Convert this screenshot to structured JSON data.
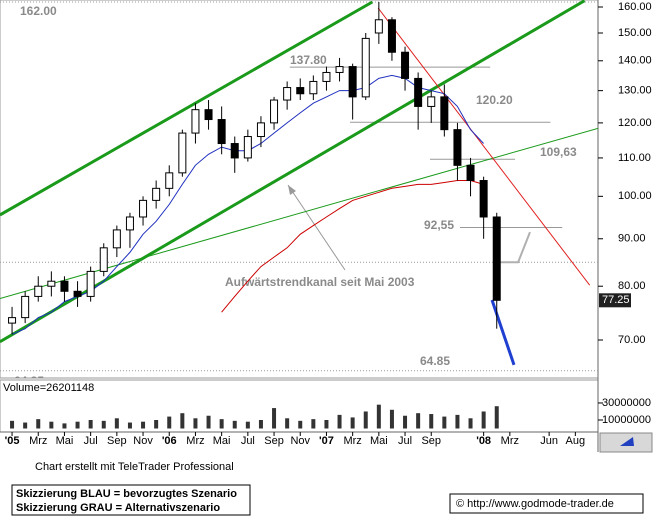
{
  "chart_data": {
    "type": "candlestick",
    "log_scale": true,
    "xlim": [
      -0.92,
      44.73
    ],
    "ylim": [
      63.7,
      162.8
    ],
    "yticks": [
      {
        "value": 160,
        "label": "160.00"
      },
      {
        "value": 150,
        "label": "150.00"
      },
      {
        "value": 140,
        "label": "140.00"
      },
      {
        "value": 130,
        "label": "130.00"
      },
      {
        "value": 120,
        "label": "120.00"
      },
      {
        "value": 110,
        "label": "110.00"
      },
      {
        "value": 100,
        "label": "100.00"
      },
      {
        "value": 90,
        "label": "90.00"
      },
      {
        "value": 80,
        "label": "80.00"
      },
      {
        "value": 70,
        "label": "70.00"
      }
    ],
    "xticks": [
      {
        "value": 0,
        "label": "'05"
      },
      {
        "value": 2,
        "label": "Mrz"
      },
      {
        "value": 4,
        "label": "Mai"
      },
      {
        "value": 6,
        "label": "Jul"
      },
      {
        "value": 8,
        "label": "Sep"
      },
      {
        "value": 10,
        "label": "Nov"
      },
      {
        "value": 12,
        "label": "'06"
      },
      {
        "value": 14,
        "label": "Mrz"
      },
      {
        "value": 16,
        "label": "Mai"
      },
      {
        "value": 18,
        "label": "Jul"
      },
      {
        "value": 20,
        "label": "Sep"
      },
      {
        "value": 22,
        "label": "Nov"
      },
      {
        "value": 24,
        "label": "'07"
      },
      {
        "value": 26,
        "label": "Mrz"
      },
      {
        "value": 28,
        "label": "Mai"
      },
      {
        "value": 30,
        "label": "Jul"
      },
      {
        "value": 32,
        "label": "Sep"
      },
      {
        "value": 36,
        "label": "'08"
      },
      {
        "value": 38,
        "label": "Mrz"
      },
      {
        "value": 41,
        "label": "Jun"
      },
      {
        "value": 43,
        "label": "Aug"
      }
    ],
    "x": [
      0,
      1,
      2,
      3,
      4,
      5,
      6,
      7,
      8,
      9,
      10,
      11,
      12,
      13,
      14,
      15,
      16,
      17,
      18,
      19,
      20,
      21,
      22,
      23,
      24,
      25,
      26,
      27,
      28,
      29,
      30,
      31,
      32,
      33,
      34,
      35,
      36,
      37
    ],
    "open": [
      73,
      74,
      78,
      80,
      81,
      79,
      78,
      83,
      88,
      92,
      95,
      99,
      102,
      106,
      117,
      124,
      121,
      114,
      110,
      116,
      120,
      127,
      131,
      129,
      133,
      136,
      138,
      128,
      150,
      155,
      143,
      134,
      125,
      128,
      118,
      108,
      104,
      95
    ],
    "high": [
      76,
      79,
      82,
      83,
      82,
      81,
      84,
      89,
      93,
      96,
      100,
      104,
      108,
      118,
      126,
      127,
      125,
      116,
      118,
      122,
      128,
      133,
      134,
      135,
      138,
      141,
      139,
      150,
      162,
      156,
      145,
      136,
      130,
      132,
      120,
      110,
      105,
      96
    ],
    "low": [
      71,
      73,
      77,
      78,
      77,
      76,
      77,
      82,
      86,
      88,
      93,
      97,
      100,
      105,
      114,
      118,
      111,
      106,
      109,
      113,
      118,
      124,
      127,
      127,
      130,
      133,
      121,
      127,
      146,
      140,
      130,
      118,
      120,
      116,
      104,
      100,
      90,
      72
    ],
    "close": [
      74,
      78,
      80,
      81,
      79,
      78,
      83,
      88,
      92,
      95,
      99,
      102,
      106,
      117,
      124,
      121,
      114,
      110,
      116,
      120,
      127,
      131,
      129,
      133,
      136,
      138,
      128,
      148,
      155,
      143,
      134,
      125,
      128,
      118,
      108,
      104,
      95,
      77.25
    ],
    "colors": {
      "up": "#ffffff",
      "down": "#000000",
      "outline": "#000000"
    },
    "series": [
      {
        "color": "#1f2fbf",
        "values": [
          71,
          72,
          74,
          75,
          77,
          78,
          79,
          81,
          84,
          87,
          91,
          94,
          98,
          103,
          108,
          111,
          113,
          112,
          112,
          114,
          117,
          120,
          123,
          126,
          128,
          130,
          130,
          131,
          134,
          135,
          134,
          131,
          130,
          129,
          125,
          118,
          114,
          null
        ]
      },
      {
        "color": "#cc0000",
        "values": [
          null,
          null,
          null,
          null,
          null,
          null,
          null,
          null,
          null,
          null,
          null,
          null,
          null,
          null,
          null,
          null,
          75,
          78,
          81,
          84,
          86,
          88,
          91,
          93,
          95,
          97,
          99,
          100,
          101,
          102,
          102.5,
          103,
          103,
          103.5,
          104,
          104,
          103,
          null
        ]
      }
    ],
    "lines": [
      {
        "color": "#1a9a1a",
        "width": 3,
        "x": [
          -0.92,
          27.5
        ],
        "values": [
          95.5,
          162
        ]
      },
      {
        "color": "#1a9a1a",
        "width": 3,
        "x": [
          -0.92,
          43.7
        ],
        "values": [
          69.7,
          162.5
        ]
      },
      {
        "color": "#1a9a1a",
        "width": 1,
        "x": [
          -0.92,
          44.73
        ],
        "values": [
          77.6,
          118.4
        ]
      },
      {
        "color": "#e02020",
        "width": 1,
        "x": [
          27.94,
          44.1
        ],
        "values": [
          159.6,
          80.2
        ]
      },
      {
        "color": "#b0b0b0",
        "width": 2,
        "x": [
          37.25,
          38.63,
          39.54
        ],
        "values": [
          84.9,
          84.9,
          91.5
        ]
      },
      {
        "color": "#1f3fd0",
        "width": 3,
        "x": [
          36.64,
          38.32
        ],
        "values": [
          77.3,
          65.8
        ]
      }
    ],
    "levels": [
      {
        "value": 162,
        "label": "162.00",
        "x": [
          -0.92,
          44.73
        ]
      },
      {
        "value": 137.8,
        "label": "137.80",
        "x": [
          21.2,
          36.5
        ]
      },
      {
        "value": 120.2,
        "label": "120.20",
        "x": [
          25.8,
          41.1
        ]
      },
      {
        "value": 109.63,
        "label": "109,63",
        "x": [
          31.9,
          38.4
        ]
      },
      {
        "value": 92.55,
        "label": "92,55",
        "x": [
          34.2,
          42
        ]
      },
      {
        "value": 84.9,
        "x": [
          -0.92,
          44.73
        ]
      },
      {
        "value": 64.85,
        "label": "64.85",
        "x": [
          -0.92,
          44.73
        ]
      }
    ],
    "annotation": "Aufwärtstrendkanal seit Mai 2003",
    "volume": {
      "label": "Volume=26201148",
      "ylim": [
        0,
        57000000
      ],
      "yticks": [
        30000000,
        10000000
      ],
      "values": [
        9000000,
        7000000,
        11000000,
        8000000,
        6000000,
        8000000,
        10000000,
        9000000,
        12000000,
        7000000,
        8000000,
        10000000,
        14000000,
        18000000,
        12000000,
        15000000,
        11000000,
        9000000,
        8000000,
        10000000,
        24000000,
        12000000,
        9000000,
        11000000,
        10000000,
        16000000,
        13000000,
        20000000,
        28000000,
        22000000,
        15000000,
        18000000,
        17000000,
        14000000,
        16000000,
        12000000,
        20000000,
        26201148
      ]
    }
  },
  "footer": {
    "credit": "Chart erstellt mit TeleTrader Professional",
    "legend": [
      "Skizzierung BLAU = bevorzugtes Szenario",
      "Skizzierung GRAU = Alternativszenario"
    ],
    "copyright": "© http://www.godmode-trader.de"
  }
}
